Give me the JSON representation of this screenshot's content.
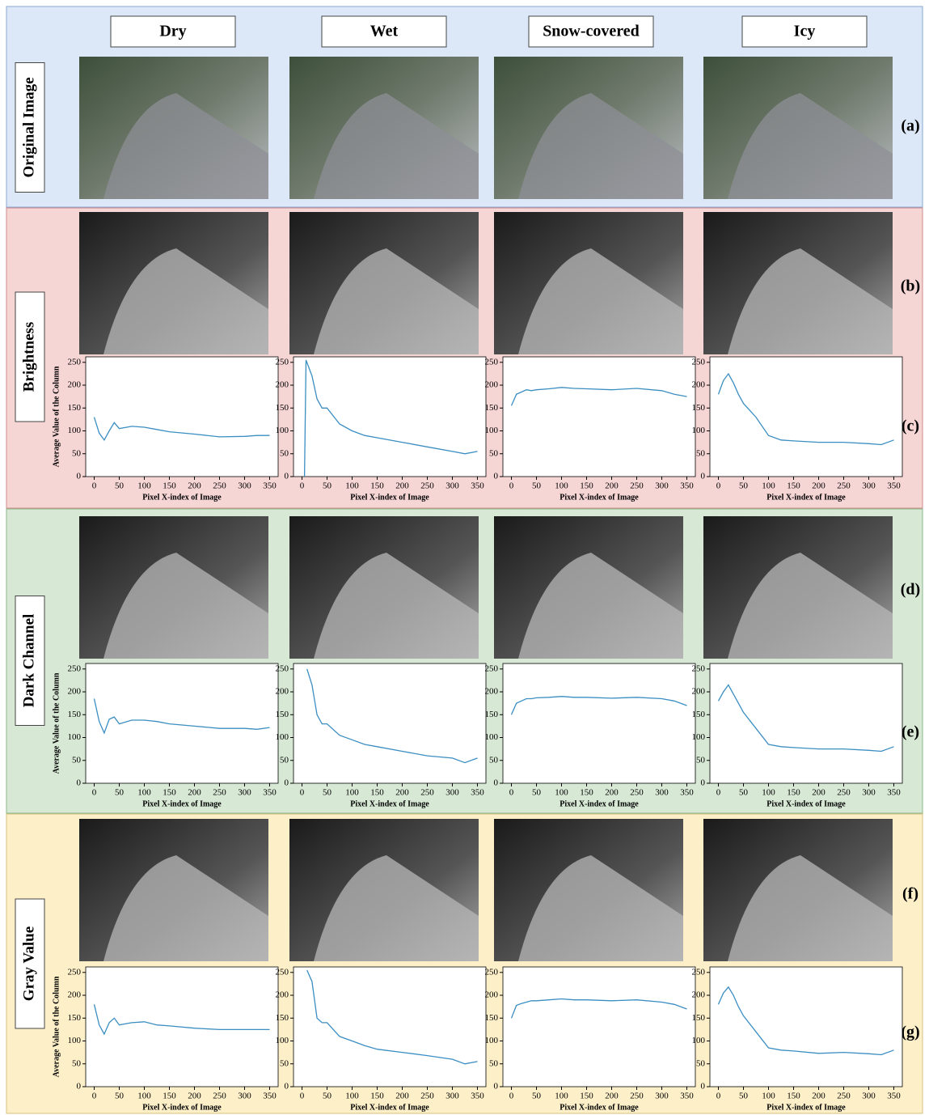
{
  "columns": [
    "Dry",
    "Wet",
    "Snow-covered",
    "Icy"
  ],
  "rows": [
    "Original Image",
    "Brightness",
    "Dark Channel",
    "Gray Value"
  ],
  "panels": [
    "(a)",
    "(b)",
    "(c)",
    "(d)",
    "(e)",
    "(f)",
    "(g)"
  ],
  "chart_data": [
    {
      "type": "line",
      "color": "#3b8ec2",
      "xlabel": "Pixel X-index of Image",
      "ylabel": "Average Value of the Column",
      "xlim": [
        -17,
        367
      ],
      "ylim": [
        0,
        262
      ],
      "xticks": [
        0,
        50,
        100,
        150,
        200,
        250,
        300,
        350
      ],
      "yticks": [
        0,
        50,
        100,
        150,
        200,
        250
      ],
      "x": [
        0,
        10,
        20,
        30,
        40,
        50,
        75,
        100,
        125,
        150,
        200,
        250,
        300,
        325,
        350
      ],
      "values": [
        130,
        95,
        80,
        100,
        118,
        105,
        110,
        108,
        103,
        98,
        93,
        87,
        88,
        90,
        90
      ]
    },
    {
      "type": "line",
      "color": "#3b8ec2",
      "xlabel": "Pixel X-index of Image",
      "xlim": [
        -17,
        367
      ],
      "ylim": [
        0,
        262
      ],
      "xticks": [
        0,
        50,
        100,
        150,
        200,
        250,
        300,
        350
      ],
      "yticks": [
        0,
        50,
        100,
        150,
        200,
        250
      ],
      "x": [
        5,
        8,
        20,
        30,
        40,
        50,
        75,
        100,
        125,
        150,
        200,
        250,
        300,
        325,
        350
      ],
      "values": [
        0,
        255,
        220,
        170,
        150,
        150,
        115,
        100,
        90,
        85,
        75,
        65,
        55,
        50,
        55
      ]
    },
    {
      "type": "line",
      "color": "#3b8ec2",
      "xlabel": "Pixel X-index of Image",
      "xlim": [
        -17,
        367
      ],
      "ylim": [
        0,
        262
      ],
      "xticks": [
        0,
        50,
        100,
        150,
        200,
        250,
        300,
        350
      ],
      "yticks": [
        0,
        50,
        100,
        150,
        200,
        250
      ],
      "x": [
        0,
        10,
        20,
        30,
        40,
        50,
        75,
        100,
        125,
        150,
        200,
        250,
        300,
        325,
        350
      ],
      "values": [
        155,
        180,
        185,
        190,
        188,
        190,
        192,
        195,
        193,
        192,
        190,
        193,
        188,
        180,
        175
      ]
    },
    {
      "type": "line",
      "color": "#3b8ec2",
      "xlabel": "Pixel X-index of Image",
      "xlim": [
        -17,
        367
      ],
      "ylim": [
        0,
        262
      ],
      "xticks": [
        0,
        50,
        100,
        150,
        200,
        250,
        300,
        350
      ],
      "yticks": [
        0,
        50,
        100,
        150,
        200,
        250
      ],
      "x": [
        0,
        10,
        20,
        30,
        40,
        50,
        75,
        100,
        125,
        150,
        200,
        250,
        300,
        325,
        350
      ],
      "values": [
        180,
        210,
        225,
        205,
        180,
        160,
        130,
        90,
        80,
        78,
        75,
        75,
        72,
        70,
        80
      ]
    },
    {
      "type": "line",
      "color": "#3b8ec2",
      "xlabel": "Pixel X-index of Image",
      "ylabel": "Average Value of the Column",
      "xlim": [
        -17,
        367
      ],
      "ylim": [
        0,
        262
      ],
      "xticks": [
        0,
        50,
        100,
        150,
        200,
        250,
        300,
        350
      ],
      "yticks": [
        0,
        50,
        100,
        150,
        200,
        250
      ],
      "x": [
        0,
        10,
        20,
        30,
        40,
        50,
        75,
        100,
        125,
        150,
        200,
        250,
        300,
        325,
        350
      ],
      "values": [
        185,
        135,
        110,
        140,
        145,
        130,
        138,
        138,
        135,
        130,
        125,
        120,
        120,
        118,
        122
      ]
    },
    {
      "type": "line",
      "color": "#3b8ec2",
      "xlabel": "Pixel X-index of Image",
      "xlim": [
        -17,
        367
      ],
      "ylim": [
        0,
        262
      ],
      "xticks": [
        0,
        50,
        100,
        150,
        200,
        250,
        300,
        350
      ],
      "yticks": [
        0,
        50,
        100,
        150,
        200,
        250
      ],
      "x": [
        10,
        20,
        30,
        40,
        50,
        75,
        100,
        125,
        150,
        200,
        250,
        300,
        325,
        350
      ],
      "values": [
        250,
        215,
        150,
        130,
        130,
        105,
        95,
        85,
        80,
        70,
        60,
        55,
        45,
        55
      ]
    },
    {
      "type": "line",
      "color": "#3b8ec2",
      "xlabel": "Pixel X-index of Image",
      "xlim": [
        -17,
        367
      ],
      "ylim": [
        0,
        262
      ],
      "xticks": [
        0,
        50,
        100,
        150,
        200,
        250,
        300,
        350
      ],
      "yticks": [
        0,
        50,
        100,
        150,
        200,
        250
      ],
      "x": [
        0,
        10,
        20,
        30,
        40,
        50,
        75,
        100,
        125,
        150,
        200,
        250,
        300,
        325,
        350
      ],
      "values": [
        150,
        175,
        180,
        185,
        185,
        187,
        188,
        190,
        188,
        188,
        186,
        188,
        185,
        180,
        170
      ]
    },
    {
      "type": "line",
      "color": "#3b8ec2",
      "xlabel": "Pixel X-index of Image",
      "xlim": [
        -17,
        367
      ],
      "ylim": [
        0,
        262
      ],
      "xticks": [
        0,
        50,
        100,
        150,
        200,
        250,
        300,
        350
      ],
      "yticks": [
        0,
        50,
        100,
        150,
        200,
        250
      ],
      "x": [
        0,
        10,
        20,
        30,
        40,
        50,
        75,
        100,
        125,
        150,
        200,
        250,
        300,
        325,
        350
      ],
      "values": [
        180,
        200,
        215,
        195,
        175,
        155,
        120,
        85,
        80,
        78,
        75,
        75,
        72,
        70,
        80
      ]
    },
    {
      "type": "line",
      "color": "#3b8ec2",
      "xlabel": "Pixel X-index of Image",
      "ylabel": "Average Value of the Column",
      "xlim": [
        -17,
        367
      ],
      "ylim": [
        0,
        262
      ],
      "xticks": [
        0,
        50,
        100,
        150,
        200,
        250,
        300,
        350
      ],
      "yticks": [
        0,
        50,
        100,
        150,
        200,
        250
      ],
      "x": [
        0,
        10,
        20,
        30,
        40,
        50,
        75,
        100,
        125,
        150,
        200,
        250,
        300,
        325,
        350
      ],
      "values": [
        180,
        135,
        115,
        140,
        150,
        135,
        140,
        142,
        135,
        133,
        128,
        125,
        125,
        125,
        125
      ]
    },
    {
      "type": "line",
      "color": "#3b8ec2",
      "xlabel": "Pixel X-index of Image",
      "xlim": [
        -17,
        367
      ],
      "ylim": [
        0,
        262
      ],
      "xticks": [
        0,
        50,
        100,
        150,
        200,
        250,
        300,
        350
      ],
      "yticks": [
        0,
        50,
        100,
        150,
        200,
        250
      ],
      "x": [
        10,
        20,
        30,
        40,
        50,
        75,
        100,
        125,
        150,
        200,
        250,
        300,
        325,
        350
      ],
      "values": [
        255,
        230,
        150,
        140,
        140,
        110,
        100,
        90,
        82,
        75,
        68,
        60,
        50,
        55
      ]
    },
    {
      "type": "line",
      "color": "#3b8ec2",
      "xlabel": "Pixel X-index of Image",
      "xlim": [
        -17,
        367
      ],
      "ylim": [
        0,
        262
      ],
      "xticks": [
        0,
        50,
        100,
        150,
        200,
        250,
        300,
        350
      ],
      "yticks": [
        0,
        50,
        100,
        150,
        200,
        250
      ],
      "x": [
        0,
        10,
        20,
        30,
        40,
        50,
        75,
        100,
        125,
        150,
        200,
        250,
        300,
        325,
        350
      ],
      "values": [
        150,
        178,
        182,
        185,
        188,
        188,
        190,
        192,
        190,
        190,
        188,
        190,
        185,
        180,
        170
      ]
    },
    {
      "type": "line",
      "color": "#3b8ec2",
      "xlabel": "Pixel X-index of Image",
      "xlim": [
        -17,
        367
      ],
      "ylim": [
        0,
        262
      ],
      "xticks": [
        0,
        50,
        100,
        150,
        200,
        250,
        300,
        350
      ],
      "yticks": [
        0,
        50,
        100,
        150,
        200,
        250
      ],
      "x": [
        0,
        10,
        20,
        30,
        40,
        50,
        75,
        100,
        125,
        150,
        200,
        250,
        300,
        325,
        350
      ],
      "values": [
        180,
        205,
        218,
        200,
        175,
        155,
        120,
        85,
        80,
        78,
        73,
        75,
        72,
        70,
        80
      ]
    }
  ]
}
